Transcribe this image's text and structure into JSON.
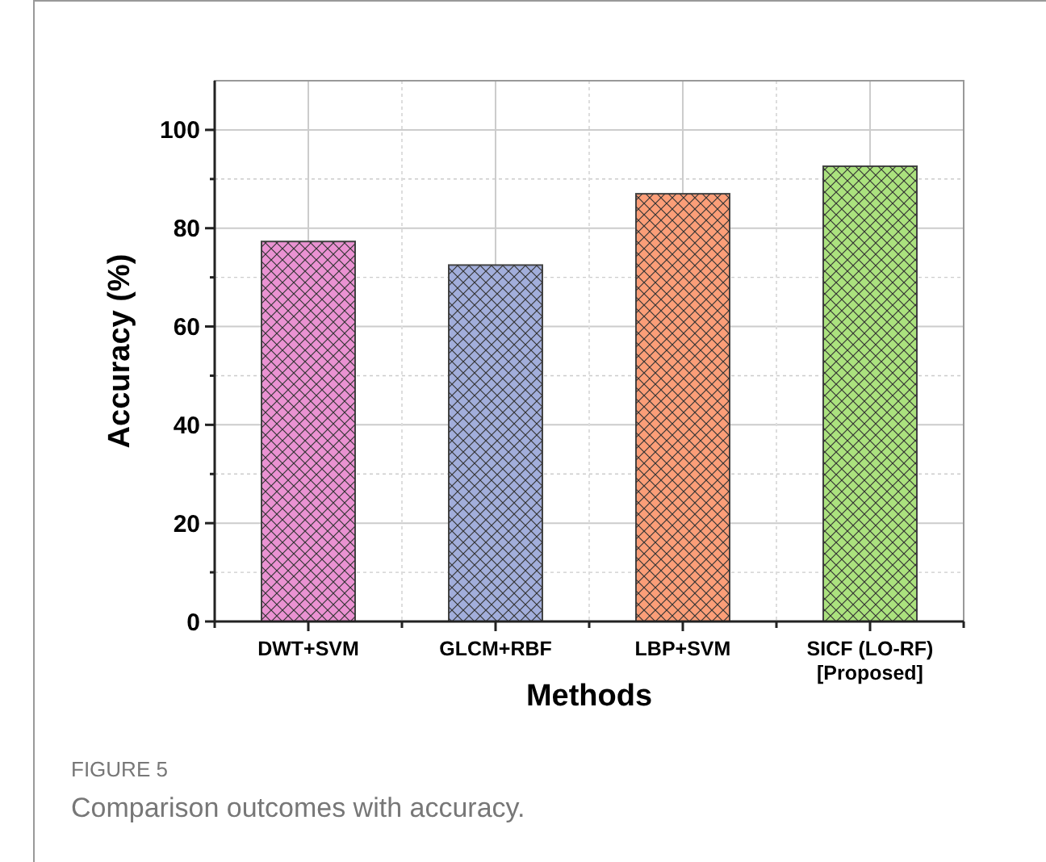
{
  "chart_data": {
    "type": "bar",
    "xlabel": "Methods",
    "ylabel": "Accuracy (%)",
    "categories": [
      "DWT+SVM",
      "GLCM+RBF",
      "LBP+SVM",
      "SICF (LO-RF)\n[Proposed]"
    ],
    "values": [
      77.3,
      72.5,
      87.0,
      92.6
    ],
    "colors": [
      "#ea92d2",
      "#a2aedb",
      "#fb9e78",
      "#abe27e"
    ],
    "ylim": [
      0,
      110
    ],
    "yticks": [
      0,
      {
        "value": 10,
        "label": null
      },
      20,
      {
        "value": 30,
        "label": null
      },
      40,
      {
        "value": 50,
        "label": null
      },
      60,
      {
        "value": 70,
        "label": null
      },
      80,
      {
        "value": 90,
        "label": null
      },
      100
    ],
    "grid": true,
    "annotations": [
      "FIGURE 5",
      "Comparison outcomes with accuracy."
    ]
  }
}
